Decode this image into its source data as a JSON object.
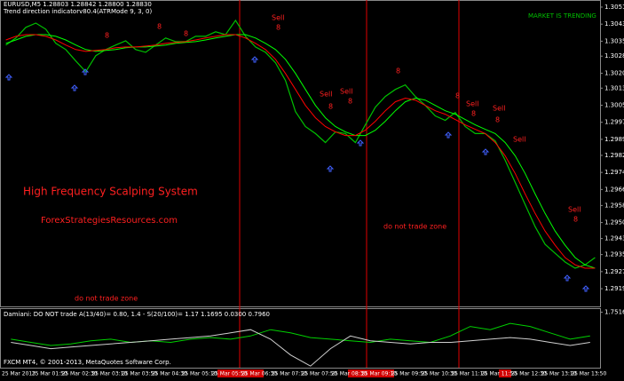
{
  "chart_data": [
    {
      "type": "line",
      "symbol_header": "EURUSD,M5  1.28803 1.28842 1.28800 1.28830",
      "indicator_header": "Trend direction indicatorv80.4(ATRMode 9, 3, 0)",
      "status": "MARKET IS TRENDING",
      "title": "High Frequency Scalping System",
      "subtitle": "ForexStrategiesResources.com",
      "zone_label": "do not trade zone",
      "sell_label": "Sell",
      "sell_marker": "8",
      "copyright": "FXCM MT4, © 2001-2013, MetaQuotes Software Corp.",
      "categories": [
        "25 Mar 2013",
        null,
        null,
        "25 Mar 01:50",
        null,
        null,
        "25 Mar 02:30",
        null,
        null,
        "25 Mar 03:10",
        null,
        null,
        "25 Mar 03:50",
        null,
        null,
        "25 Mar 04:30",
        null,
        null,
        "25 Mar 05:10",
        null,
        null,
        "25 Mar 05:50",
        null,
        null,
        "25 Mar 06:30",
        null,
        null,
        "25 Mar 07:10",
        null,
        null,
        "25 Mar 07:50",
        null,
        null,
        "25 Mar 08:30",
        null,
        null,
        "25 Mar 09:10",
        null,
        null,
        "25 Mar 09:50",
        null,
        null,
        "25 Mar 10:30",
        null,
        null,
        "25 Mar 11:10",
        null,
        null,
        "25 Mar 11:50",
        null,
        null,
        "25 Mar 12:30",
        null,
        null,
        "25 Mar 13:10",
        null,
        null,
        "25 Mar 13:50",
        null,
        null
      ],
      "series": [
        {
          "name": "EURUSD",
          "color": "#00c000",
          "values": [
            1.30337,
            1.3037,
            1.3042,
            1.3044,
            1.30411,
            1.30345,
            1.30316,
            1.30262,
            1.30212,
            1.30287,
            1.30316,
            1.30337,
            1.30357,
            1.30316,
            1.30303,
            1.30337,
            1.3037,
            1.30353,
            1.30353,
            1.30378,
            1.30378,
            1.30399,
            1.30386,
            1.30453,
            1.30378,
            1.30328,
            1.30303,
            1.30254,
            1.30171,
            1.30025,
            1.29955,
            1.29922,
            1.2988,
            1.2993,
            1.29922,
            1.2988,
            1.29963,
            1.30046,
            1.30096,
            1.30129,
            1.3015,
            1.30096,
            1.30054,
            1.30005,
            1.29984,
            1.30021,
            1.29955,
            1.29922,
            1.29922,
            1.29888,
            1.29797,
            1.29693,
            1.2959,
            1.29486,
            1.29403,
            1.29361,
            1.2932,
            1.29291,
            1.29307,
            1.29341
          ]
        },
        {
          "name": "Trend green",
          "color": "#00ff00",
          "values": [
            1.30345,
            1.30361,
            1.30378,
            1.30386,
            1.30386,
            1.30378,
            1.30361,
            1.30337,
            1.30316,
            1.30307,
            1.30312,
            1.30316,
            1.30324,
            1.30328,
            1.30328,
            1.30332,
            1.30337,
            1.30345,
            1.30349,
            1.30353,
            1.30361,
            1.3037,
            1.30378,
            1.30386,
            1.30386,
            1.3037,
            1.30345,
            1.30316,
            1.3027,
            1.30204,
            1.30129,
            1.30054,
            1.29996,
            1.29955,
            1.2993,
            1.29913,
            1.29913,
            1.29938,
            1.2998,
            1.30029,
            1.30071,
            1.30088,
            1.30079,
            1.30054,
            1.30029,
            1.30013,
            1.29988,
            1.29963,
            1.29942,
            1.29922,
            1.2988,
            1.29818,
            1.29735,
            1.29639,
            1.29548,
            1.29465,
            1.29399,
            1.29341,
            1.29307,
            1.29291
          ]
        },
        {
          "name": "Trend red",
          "color": "#ff0000",
          "values": [
            1.30361,
            1.30378,
            1.30386,
            1.30386,
            1.30378,
            1.30361,
            1.30337,
            1.30316,
            1.30307,
            1.30312,
            1.30316,
            1.30324,
            1.30328,
            1.30328,
            1.30332,
            1.30337,
            1.30345,
            1.30349,
            1.30353,
            1.30361,
            1.3037,
            1.30378,
            1.30386,
            1.30386,
            1.3037,
            1.30345,
            1.30316,
            1.3027,
            1.30204,
            1.30129,
            1.30054,
            1.29996,
            1.29955,
            1.2993,
            1.29913,
            1.29913,
            1.29938,
            1.2998,
            1.30029,
            1.30071,
            1.30088,
            1.30079,
            1.30054,
            1.30029,
            1.30013,
            1.29988,
            1.29963,
            1.29942,
            1.29922,
            1.2988,
            1.29818,
            1.29735,
            1.29639,
            1.29548,
            1.29465,
            1.29399,
            1.29341,
            1.29307,
            1.29291,
            1.29291
          ]
        }
      ],
      "ylim": [
        1.29112,
        1.30544
      ],
      "yticks": [
        1.30515,
        1.30435,
        1.30355,
        1.30285,
        1.30205,
        1.30135,
        1.30055,
        1.29975,
        1.29895,
        {
          "value": 1.2982,
          "label": "1.29820"
        },
        {
          "value": 1.2974,
          "label": "1.29740"
        },
        {
          "value": 1.2966,
          "label": "1.29660"
        },
        1.29585,
        1.29505,
        {
          "value": 1.2943,
          "label": "1.29430"
        },
        1.29355,
        1.29275,
        1.29195
      ]
    },
    {
      "type": "line",
      "title": "Damiani: DO NOT trade A(13/40)= 0.80, 1.4 - S(20/100)= 1.17  1.1695 0.0300 0.7960",
      "series": [
        {
          "name": "Damiani green",
          "color": "#00d000",
          "values": [
            0.9,
            0.8,
            0.7,
            0.75,
            0.85,
            0.9,
            0.8,
            0.85,
            0.8,
            0.9,
            0.95,
            0.9,
            1.0,
            1.2,
            1.1,
            0.95,
            0.9,
            0.85,
            0.8,
            0.9,
            0.85,
            0.8,
            1.0,
            1.3,
            1.2,
            1.4,
            1.3,
            1.1,
            0.9,
            1.0
          ]
        },
        {
          "name": "Damiani white",
          "color": "#d0d0d0",
          "values": [
            0.8,
            0.7,
            0.6,
            0.65,
            0.7,
            0.75,
            0.8,
            0.85,
            0.9,
            0.95,
            1.0,
            1.1,
            1.2,
            0.9,
            0.4,
            0.05,
            0.6,
            1.0,
            0.85,
            0.8,
            0.75,
            0.8,
            0.8,
            0.85,
            0.9,
            0.95,
            0.9,
            0.8,
            0.7,
            0.8
          ]
        }
      ],
      "ylim": [
        0,
        1.85
      ],
      "yticks": [
        1.7516
      ]
    }
  ]
}
